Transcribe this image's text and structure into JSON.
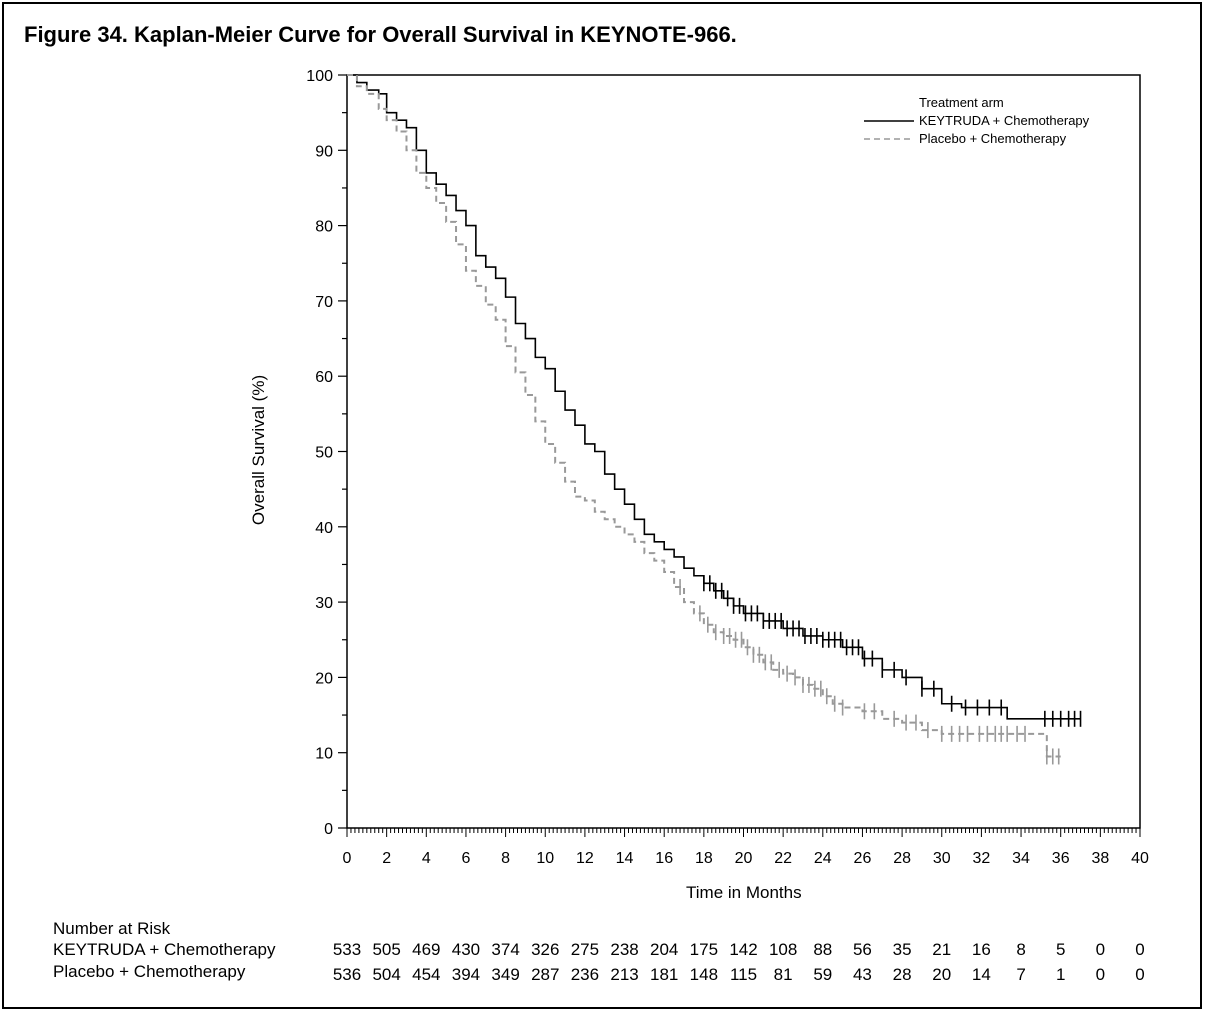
{
  "figure": {
    "title": "Figure 34. Kaplan-Meier Curve for Overall Survival in KEYNOTE-966."
  },
  "chart_data": {
    "type": "line",
    "subtype": "kaplan-meier",
    "title": "Figure 34. Kaplan-Meier Curve for Overall Survival in KEYNOTE-966.",
    "xlabel": "Time in Months",
    "ylabel": "Overall Survival (%)",
    "xlim": [
      0,
      40
    ],
    "ylim": [
      0,
      100
    ],
    "xticks": [
      0,
      2,
      4,
      6,
      8,
      10,
      12,
      14,
      16,
      18,
      20,
      22,
      24,
      26,
      28,
      30,
      32,
      34,
      36,
      38,
      40
    ],
    "yticks": [
      0,
      10,
      20,
      30,
      40,
      50,
      60,
      70,
      80,
      90,
      100
    ],
    "grid": false,
    "legend": {
      "title": "Treatment arm",
      "position": "top-right"
    },
    "series": [
      {
        "name": "KEYTRUDA + Chemotherapy",
        "color": "#000000",
        "style": "solid",
        "points": [
          [
            0,
            100
          ],
          [
            0.5,
            99
          ],
          [
            1,
            98
          ],
          [
            1.6,
            97.5
          ],
          [
            2,
            95
          ],
          [
            2.5,
            94
          ],
          [
            3,
            93
          ],
          [
            3.5,
            90
          ],
          [
            4,
            87
          ],
          [
            4.5,
            85.5
          ],
          [
            5,
            84
          ],
          [
            5.5,
            82
          ],
          [
            6,
            80
          ],
          [
            6.5,
            76
          ],
          [
            7,
            74.5
          ],
          [
            7.5,
            73
          ],
          [
            8,
            70.5
          ],
          [
            8.5,
            67
          ],
          [
            9,
            65
          ],
          [
            9.5,
            62.5
          ],
          [
            10,
            61
          ],
          [
            10.5,
            58
          ],
          [
            11,
            55.5
          ],
          [
            11.5,
            53.5
          ],
          [
            12,
            51
          ],
          [
            12.5,
            50
          ],
          [
            13,
            47
          ],
          [
            13.5,
            45
          ],
          [
            14,
            43
          ],
          [
            14.5,
            41
          ],
          [
            15,
            39
          ],
          [
            15.5,
            38
          ],
          [
            16,
            37
          ],
          [
            16.5,
            36
          ],
          [
            17,
            34.5
          ],
          [
            17.5,
            33.5
          ],
          [
            18,
            32.5
          ],
          [
            18.5,
            31.5
          ],
          [
            19,
            30.5
          ],
          [
            19.5,
            29.5
          ],
          [
            20,
            28.5
          ],
          [
            21,
            27.5
          ],
          [
            22,
            26.5
          ],
          [
            23,
            25.5
          ],
          [
            24,
            25
          ],
          [
            25,
            24
          ],
          [
            26,
            22.5
          ],
          [
            27,
            21
          ],
          [
            28,
            20
          ],
          [
            29,
            18.5
          ],
          [
            30,
            16.5
          ],
          [
            31,
            16
          ],
          [
            32,
            16
          ],
          [
            33,
            16
          ],
          [
            33.3,
            14.5
          ],
          [
            35,
            14.5
          ],
          [
            37,
            14.5
          ]
        ],
        "censor_months": [
          18,
          18.3,
          18.6,
          18.9,
          19.2,
          19.5,
          19.8,
          20.1,
          20.4,
          20.7,
          21,
          21.3,
          21.6,
          21.9,
          22.2,
          22.5,
          22.8,
          23.1,
          23.4,
          23.7,
          24,
          24.3,
          24.6,
          24.9,
          25.2,
          25.5,
          25.8,
          26.1,
          26.5,
          27,
          27.6,
          28.2,
          29,
          29.6,
          30.5,
          31.2,
          31.8,
          32.4,
          33,
          35.2,
          35.6,
          36,
          36.4,
          36.7,
          37
        ]
      },
      {
        "name": "Placebo + Chemotherapy",
        "color": "#999999",
        "style": "dashed",
        "points": [
          [
            0,
            100
          ],
          [
            0.5,
            98.5
          ],
          [
            1,
            97.5
          ],
          [
            1.6,
            95.5
          ],
          [
            2,
            94
          ],
          [
            2.5,
            92.5
          ],
          [
            3,
            90
          ],
          [
            3.5,
            87
          ],
          [
            4,
            85
          ],
          [
            4.5,
            83
          ],
          [
            5,
            80.5
          ],
          [
            5.5,
            77.5
          ],
          [
            6,
            74
          ],
          [
            6.5,
            72
          ],
          [
            7,
            69.5
          ],
          [
            7.5,
            67.5
          ],
          [
            8,
            64
          ],
          [
            8.5,
            60.5
          ],
          [
            9,
            57.5
          ],
          [
            9.5,
            54
          ],
          [
            10,
            51
          ],
          [
            10.5,
            48.5
          ],
          [
            11,
            46
          ],
          [
            11.5,
            44
          ],
          [
            12,
            43.5
          ],
          [
            12.5,
            42
          ],
          [
            13,
            41
          ],
          [
            13.5,
            40
          ],
          [
            14,
            39
          ],
          [
            14.5,
            38
          ],
          [
            15,
            36.5
          ],
          [
            15.5,
            35.5
          ],
          [
            16,
            34
          ],
          [
            16.5,
            32
          ],
          [
            17,
            30
          ],
          [
            17.5,
            28.5
          ],
          [
            18,
            27
          ],
          [
            18.5,
            26
          ],
          [
            19,
            25.5
          ],
          [
            19.5,
            25
          ],
          [
            20,
            24
          ],
          [
            20.5,
            23
          ],
          [
            21,
            22
          ],
          [
            21.5,
            21
          ],
          [
            22,
            20.5
          ],
          [
            22.5,
            20
          ],
          [
            23,
            19
          ],
          [
            23.5,
            18.5
          ],
          [
            24,
            17.5
          ],
          [
            24.5,
            16.5
          ],
          [
            25,
            16
          ],
          [
            26,
            15.5
          ],
          [
            27,
            14.5
          ],
          [
            28,
            14
          ],
          [
            29,
            13
          ],
          [
            30,
            12.5
          ],
          [
            32,
            12.5
          ],
          [
            34,
            12.5
          ],
          [
            35,
            12.5
          ],
          [
            35.3,
            9.5
          ],
          [
            36,
            9.5
          ]
        ],
        "censor_months": [
          16.8,
          17.8,
          18.2,
          18.6,
          19,
          19.3,
          19.6,
          19.9,
          20.2,
          20.5,
          20.8,
          21.1,
          21.4,
          21.8,
          22.2,
          22.6,
          23,
          23.3,
          23.6,
          23.9,
          24.2,
          24.6,
          25,
          26.1,
          26.6,
          27.6,
          28.2,
          28.7,
          29.3,
          30,
          30.5,
          30.9,
          31.3,
          31.9,
          32.3,
          32.7,
          33,
          33.3,
          33.8,
          34.2,
          35.3,
          35.6,
          35.9
        ]
      }
    ]
  },
  "risk_table": {
    "header": "Number at Risk",
    "times": [
      0,
      2,
      4,
      6,
      8,
      10,
      12,
      14,
      16,
      18,
      20,
      22,
      24,
      26,
      28,
      30,
      32,
      34,
      36,
      38,
      40
    ],
    "rows": [
      {
        "label": "KEYTRUDA + Chemotherapy",
        "values": [
          "533",
          "505",
          "469",
          "430",
          "374",
          "326",
          "275",
          "238",
          "204",
          "175",
          "142",
          "108",
          "88",
          "56",
          "35",
          "21",
          "16",
          "8",
          "5",
          "0",
          "0"
        ]
      },
      {
        "label": "Placebo + Chemotherapy",
        "values": [
          "536",
          "504",
          "454",
          "394",
          "349",
          "287",
          "236",
          "213",
          "181",
          "148",
          "115",
          "81",
          "59",
          "43",
          "28",
          "20",
          "14",
          "7",
          "1",
          "0",
          "0"
        ]
      }
    ]
  }
}
